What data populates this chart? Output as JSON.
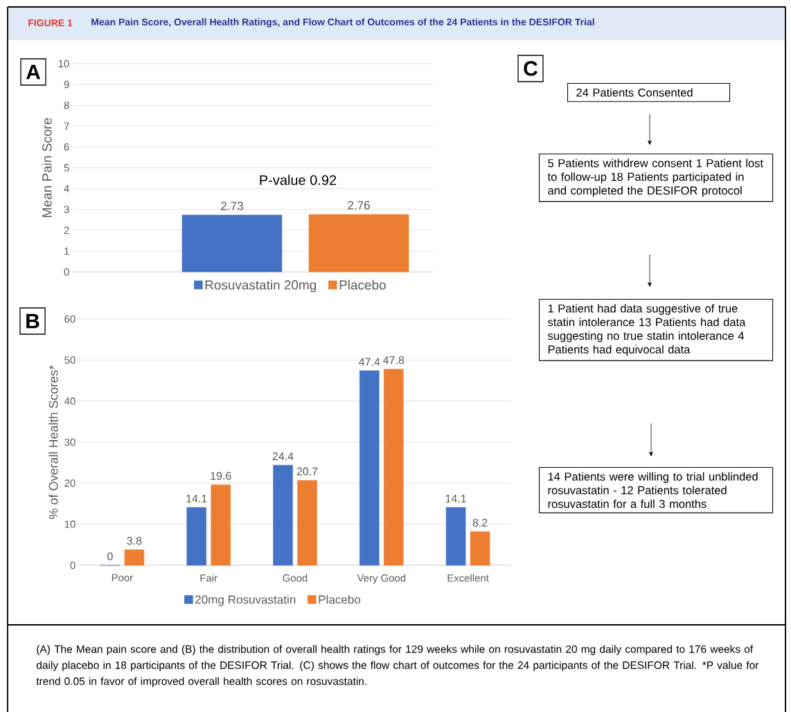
{
  "chart_data": [
    {
      "type": "bar",
      "title": "FIGURE 1",
      "subtitle": "Mean Pain Score, Overall Health Ratings, and Flow Chart of Outcomes of the 24 Patients in the DESIFOR Trial",
      "annotations": [
        "A",
        "P-value 0.92"
      ],
      "categories": [
        null
      ],
      "ylabel": "Mean Pain Score",
      "ylim": [
        0,
        10
      ],
      "yticks": [
        0,
        1,
        2,
        3,
        4,
        5,
        6,
        7,
        8,
        9,
        10
      ],
      "grid": "y",
      "legend": "bottom",
      "data_labels": true,
      "series": [
        {
          "name": "Rosuvastatin 20mg",
          "color": "#4472c4",
          "values": [
            2.73
          ]
        },
        {
          "name": "Placebo",
          "color": "#ed7d31",
          "values": [
            2.76
          ]
        }
      ]
    },
    {
      "type": "bar",
      "title": "B",
      "categories": [
        "Poor",
        "Fair",
        "Good",
        "Very Good",
        "Excellent"
      ],
      "ylabel": "% of Overall Health Scores*",
      "ylim": [
        0,
        60
      ],
      "yticks": [
        0,
        10,
        20,
        30,
        40,
        50,
        60
      ],
      "grid": "y",
      "legend": "bottom",
      "data_labels": true,
      "series": [
        {
          "name": "20mg Rosuvastatin",
          "color": "#4472c4",
          "values": [
            0,
            14.1,
            24.4,
            47.4,
            14.1
          ]
        },
        {
          "name": "Placebo",
          "color": "#ed7d31",
          "values": [
            3.8,
            19.6,
            20.7,
            47.8,
            8.2
          ]
        }
      ]
    },
    {
      "type": "other",
      "title": "C",
      "annotations": [
        "24 Patients Consented",
        "5 Patients withdrew consent 1 Patient lost to follow-up 18 Patients participated in and completed the DESIFOR protocol",
        "1 Patient had data suggestive of true statin intolerance 13 Patients had data suggesting no true statin intolerance 4 Patients had equivocal data",
        "14 Patients were willing to trial unblinded rosuvastatin - 12 Patients tolerated rosuvastatin for a full 3 months",
        "(A) The Mean pain score and (B) the distribution of overall health ratings for 129 weeks while on rosuvastatin 20 mg daily compared to 176 weeks of daily placebo in 18 participants of the DESIFOR Trial. (C) shows the flow chart of outcomes for the 24 participants of the DESIFOR Trial. *P value for trend 0.05 in favor of improved overall health scores on rosuvastatin."
      ]
    }
  ]
}
